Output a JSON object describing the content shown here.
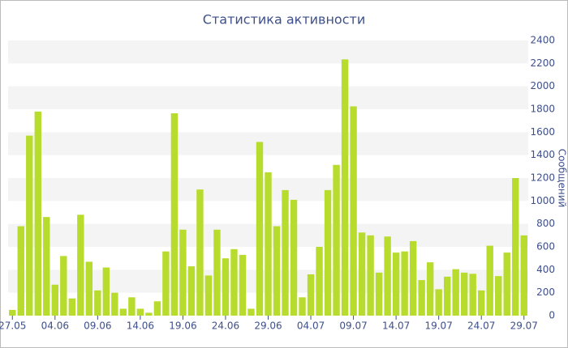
{
  "chart_data": {
    "type": "bar",
    "title": "Статистика активности",
    "y_label": "Сообщений",
    "categories": [
      "27.05",
      null,
      null,
      null,
      null,
      "04.06",
      null,
      null,
      null,
      null,
      "09.06",
      null,
      null,
      null,
      null,
      "14.06",
      null,
      null,
      null,
      null,
      "19.06",
      null,
      null,
      null,
      null,
      "24.06",
      null,
      null,
      null,
      null,
      "29.06",
      null,
      null,
      null,
      null,
      "04.07",
      null,
      null,
      null,
      null,
      "09.07",
      null,
      null,
      null,
      null,
      "14.07",
      null,
      null,
      null,
      null,
      "19.07",
      null,
      null,
      null,
      null,
      "24.07",
      null,
      null,
      null,
      null,
      "29.07"
    ],
    "values": [
      50,
      780,
      1570,
      1780,
      860,
      270,
      520,
      150,
      880,
      470,
      220,
      420,
      200,
      60,
      160,
      60,
      25,
      125,
      560,
      1765,
      750,
      430,
      1100,
      350,
      750,
      500,
      580,
      530,
      60,
      1515,
      1250,
      780,
      1095,
      1010,
      160,
      360,
      600,
      1095,
      1315,
      2235,
      1825,
      725,
      700,
      375,
      690,
      550,
      560,
      650,
      310,
      465,
      230,
      340,
      405,
      375,
      365,
      220,
      610,
      345,
      550,
      1200,
      700
    ],
    "color": "#b8dc2e",
    "ylim": [
      0,
      2400
    ],
    "yticks": [
      0,
      200,
      400,
      600,
      800,
      1000,
      1200,
      1400,
      1600,
      1800,
      2000,
      2200,
      2400
    ],
    "grid": true
  }
}
